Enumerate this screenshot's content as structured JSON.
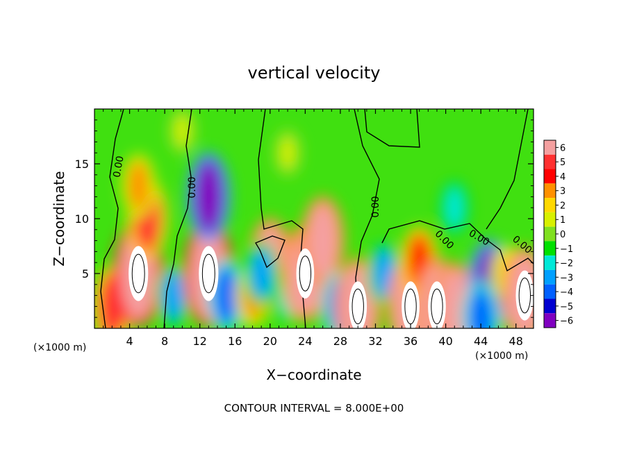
{
  "chart_data": {
    "type": "heatmap",
    "title": "vertical velocity",
    "xlabel": "X−coordinate",
    "ylabel": "Z−coordinate",
    "x_unit_left": "(×1000 m)",
    "x_unit_right": "(×1000 m)",
    "xlim": [
      0,
      50
    ],
    "ylim": [
      0,
      20
    ],
    "x_ticks": [
      4,
      8,
      12,
      16,
      20,
      24,
      28,
      32,
      36,
      40,
      44,
      48
    ],
    "x_tick_labels": [
      "4",
      "8",
      "12",
      "16",
      "20",
      "24",
      "28",
      "32",
      "36",
      "40",
      "44",
      "48"
    ],
    "y_ticks": [
      5,
      10,
      15
    ],
    "y_tick_labels": [
      "5",
      "10",
      "15"
    ],
    "colorbar": {
      "min": -6,
      "max": 6,
      "levels": [
        6,
        5,
        4,
        3,
        2,
        1,
        0,
        -1,
        -2,
        -3,
        -4,
        -5,
        -6
      ],
      "level_labels": [
        "6",
        "5",
        "4",
        "3",
        "2",
        "1",
        "0",
        "−1",
        "−2",
        "−3",
        "−4",
        "−5",
        "−6"
      ],
      "colors": [
        "#f4a0a0",
        "#ff3030",
        "#ff0000",
        "#ff9000",
        "#ffd800",
        "#d8f000",
        "#80e020",
        "#00e000",
        "#00e8d8",
        "#00a0ff",
        "#0060ff",
        "#0000d0",
        "#8000c0"
      ]
    },
    "cells": [
      {
        "x": 2,
        "z": 2,
        "w": 5
      },
      {
        "x": 5,
        "z": 5,
        "w": 8
      },
      {
        "x": 6,
        "z": 10,
        "w": 5
      },
      {
        "x": 5,
        "z": 13,
        "w": 3
      },
      {
        "x": 9,
        "z": 3,
        "w": -3
      },
      {
        "x": 13,
        "z": 5,
        "w": 8
      },
      {
        "x": 13,
        "z": 12,
        "w": -6
      },
      {
        "x": 15,
        "z": 3,
        "w": -4
      },
      {
        "x": 18,
        "z": 3,
        "w": 3
      },
      {
        "x": 20,
        "z": 6,
        "w": 6
      },
      {
        "x": 19,
        "z": 5,
        "w": -3
      },
      {
        "x": 22,
        "z": 3,
        "w": -2
      },
      {
        "x": 24,
        "z": 5,
        "w": 7
      },
      {
        "x": 26,
        "z": 8,
        "w": 6
      },
      {
        "x": 28,
        "z": 2,
        "w": -4
      },
      {
        "x": 30,
        "z": 2,
        "w": 7
      },
      {
        "x": 33,
        "z": 5,
        "w": -3
      },
      {
        "x": 36,
        "z": 2,
        "w": 7
      },
      {
        "x": 37,
        "z": 6,
        "w": 4
      },
      {
        "x": 39,
        "z": 2,
        "w": 7
      },
      {
        "x": 41,
        "z": 2,
        "w": 6
      },
      {
        "x": 41,
        "z": 11,
        "w": -2
      },
      {
        "x": 45,
        "z": 4,
        "w": -6
      },
      {
        "x": 44,
        "z": 1,
        "w": -4
      },
      {
        "x": 47,
        "z": 5,
        "w": 2
      },
      {
        "x": 49,
        "z": 3,
        "w": 7
      },
      {
        "x": 22,
        "z": 16,
        "w": 1
      },
      {
        "x": 10,
        "z": 18,
        "w": 1
      }
    ],
    "contour_labels": [
      "0.00",
      "0.00",
      "0.00",
      "0.00",
      "0.00",
      "0.00"
    ],
    "contour_interval_text": "CONTOUR INTERVAL =  8.000E+00"
  }
}
